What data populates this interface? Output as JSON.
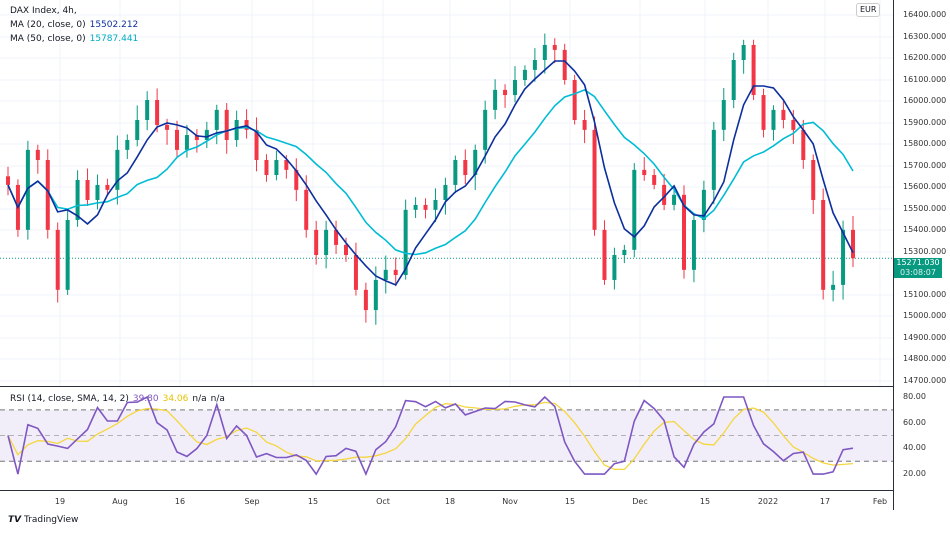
{
  "legend": {
    "title": "DAX Index, 4h,",
    "ma20_label": "MA (20, close, 0)",
    "ma20_value": "15502.212",
    "ma50_label": "MA (50, close, 0)",
    "ma50_value": "15787.441"
  },
  "rsi_legend": {
    "label": "RSI (14, close, SMA, 14, 2)",
    "rsi_value": "39.80",
    "sma_value": "34.06",
    "na1": "n/a",
    "na2": "n/a"
  },
  "currency": "EUR",
  "price_tag": {
    "price": "15271.030",
    "countdown": "03:08:07"
  },
  "price_axis": [
    "16400.000",
    "16300.000",
    "16200.000",
    "16100.000",
    "16000.000",
    "15900.000",
    "15800.000",
    "15700.000",
    "15600.000",
    "15500.000",
    "15400.000",
    "15300.000",
    "15100.000",
    "15000.000",
    "14900.000",
    "14800.000",
    "14700.000"
  ],
  "rsi_axis": [
    "80.00",
    "60.00",
    "40.00",
    "20.00"
  ],
  "time_axis": [
    "19",
    "Aug",
    "16",
    "Sep",
    "15",
    "Oct",
    "18",
    "Nov",
    "15",
    "Dec",
    "15",
    "2022",
    "17",
    "Feb"
  ],
  "brand": "TradingView",
  "colors": {
    "up": "#089981",
    "down": "#f23645",
    "ma20": "#0c2f9e",
    "ma50": "#00bcd4",
    "rsi": "#7e57c2",
    "rsi_sma": "#f5d63d"
  },
  "chart_data": {
    "type": "candlestick",
    "symbol": "DAX Index",
    "interval": "4h",
    "ylim": [
      14700,
      16400
    ],
    "close": [
      15612,
      15403,
      15775,
      15728,
      15403,
      15124,
      15449,
      15635,
      15542,
      15612,
      15589,
      15775,
      15821,
      15914,
      16007,
      15891,
      15868,
      15775,
      15844,
      15821,
      15868,
      15961,
      15821,
      15914,
      15868,
      15728,
      15658,
      15728,
      15682,
      15589,
      15403,
      15286,
      15403,
      15333,
      15286,
      15124,
      15030,
      15170,
      15217,
      15193,
      15496,
      15519,
      15496,
      15542,
      15612,
      15728,
      15658,
      15775,
      15961,
      16054,
      16030,
      16100,
      16147,
      16193,
      16263,
      16240,
      16100,
      15914,
      15868,
      15403,
      15170,
      15286,
      15310,
      15682,
      15658,
      15612,
      15519,
      15566,
      15217,
      15449,
      15589,
      15868,
      16007,
      16193,
      16263,
      16030,
      15868,
      15961,
      15914,
      15868,
      15728,
      15542,
      15124,
      15147,
      15403,
      15271
    ],
    "rsi_ylim": [
      10,
      85
    ],
    "rsi_levels": [
      70,
      50,
      30
    ]
  }
}
